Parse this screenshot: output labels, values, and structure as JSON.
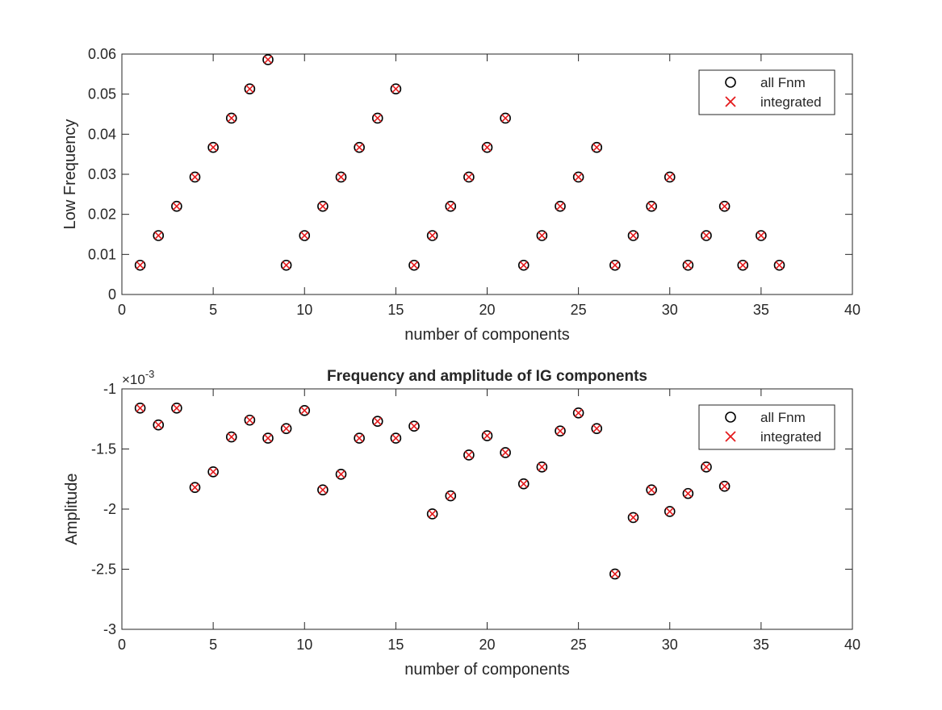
{
  "chart_data": [
    {
      "type": "scatter",
      "title": "",
      "xlabel": "number of components",
      "ylabel": "Low Frequency",
      "xlim": [
        0,
        40
      ],
      "ylim": [
        0,
        0.06
      ],
      "xticks": [
        0,
        5,
        10,
        15,
        20,
        25,
        30,
        35,
        40
      ],
      "xtick_labels": [
        "0",
        "5",
        "10",
        "15",
        "20",
        "25",
        "30",
        "35",
        "40"
      ],
      "yticks": [
        0,
        0.01,
        0.02,
        0.03,
        0.04,
        0.05,
        0.06
      ],
      "ytick_labels": [
        "0",
        "0.01",
        "0.02",
        "0.03",
        "0.04",
        "0.05",
        "0.06"
      ],
      "grid": false,
      "legend_position": "top-right",
      "x": [
        1,
        2,
        3,
        4,
        5,
        6,
        7,
        8,
        9,
        10,
        11,
        12,
        13,
        14,
        15,
        16,
        17,
        18,
        19,
        20,
        21,
        22,
        23,
        24,
        25,
        26,
        27,
        28,
        29,
        30,
        31,
        32,
        33,
        34,
        35,
        36
      ],
      "series": [
        {
          "name": "all Fnm",
          "marker": "circle",
          "color": "#000000",
          "values": [
            0.0073,
            0.0147,
            0.022,
            0.0293,
            0.0367,
            0.044,
            0.0513,
            0.0586,
            0.0073,
            0.0147,
            0.022,
            0.0293,
            0.0367,
            0.044,
            0.0513,
            0.0073,
            0.0147,
            0.022,
            0.0293,
            0.0367,
            0.044,
            0.0073,
            0.0147,
            0.022,
            0.0293,
            0.0367,
            0.0073,
            0.0147,
            0.022,
            0.0293,
            0.0073,
            0.0147,
            0.022,
            0.0073,
            0.0147,
            0.0073
          ]
        },
        {
          "name": "integrated",
          "marker": "x",
          "color": "#e41a1c",
          "values": [
            0.0073,
            0.0147,
            0.022,
            0.0293,
            0.0367,
            0.044,
            0.0513,
            0.0586,
            0.0073,
            0.0147,
            0.022,
            0.0293,
            0.0367,
            0.044,
            0.0513,
            0.0073,
            0.0147,
            0.022,
            0.0293,
            0.0367,
            0.044,
            0.0073,
            0.0147,
            0.022,
            0.0293,
            0.0367,
            0.0073,
            0.0147,
            0.022,
            0.0293,
            0.0073,
            0.0147,
            0.022,
            0.0073,
            0.0147,
            0.0073
          ]
        }
      ]
    },
    {
      "type": "scatter",
      "title": "Frequency and amplitude of IG components",
      "xlabel": "number of components",
      "ylabel": "Amplitude",
      "y_multiplier_base": "×10",
      "y_multiplier_exp": "-3",
      "xlim": [
        0,
        40
      ],
      "ylim": [
        -3,
        -1
      ],
      "xticks": [
        0,
        5,
        10,
        15,
        20,
        25,
        30,
        35,
        40
      ],
      "xtick_labels": [
        "0",
        "5",
        "10",
        "15",
        "20",
        "25",
        "30",
        "35",
        "40"
      ],
      "yticks": [
        -3,
        -2.5,
        -2,
        -1.5,
        -1
      ],
      "ytick_labels": [
        "-3",
        "-2.5",
        "-2",
        "-1.5",
        "-1"
      ],
      "grid": false,
      "legend_position": "top-right",
      "x": [
        1,
        2,
        3,
        4,
        5,
        6,
        7,
        8,
        9,
        10,
        11,
        12,
        13,
        14,
        15,
        16,
        17,
        18,
        19,
        20,
        21,
        22,
        23,
        24,
        25,
        26,
        27,
        28,
        29,
        30,
        31,
        32,
        33
      ],
      "series": [
        {
          "name": "all Fnm",
          "marker": "circle",
          "color": "#000000",
          "values": [
            -1.16,
            -1.3,
            -1.16,
            -1.82,
            -1.69,
            -1.4,
            -1.26,
            -1.41,
            -1.33,
            -1.18,
            -1.84,
            -1.71,
            -1.41,
            -1.27,
            -1.41,
            -1.31,
            -2.04,
            -1.89,
            -1.55,
            -1.39,
            -1.53,
            -1.79,
            -1.65,
            -1.35,
            -1.2,
            -1.33,
            -2.54,
            -2.07,
            -1.84,
            -2.02,
            -1.87,
            -1.65,
            -1.81
          ]
        },
        {
          "name": "integrated",
          "marker": "x",
          "color": "#e41a1c",
          "values": [
            -1.16,
            -1.3,
            -1.16,
            -1.82,
            -1.69,
            -1.4,
            -1.26,
            -1.41,
            -1.33,
            -1.18,
            -1.84,
            -1.71,
            -1.41,
            -1.27,
            -1.41,
            -1.31,
            -2.04,
            -1.89,
            -1.55,
            -1.39,
            -1.53,
            -1.79,
            -1.65,
            -1.35,
            -1.2,
            -1.33,
            -2.54,
            -2.07,
            -1.84,
            -2.02,
            -1.87,
            -1.65,
            -1.81
          ]
        }
      ]
    }
  ]
}
